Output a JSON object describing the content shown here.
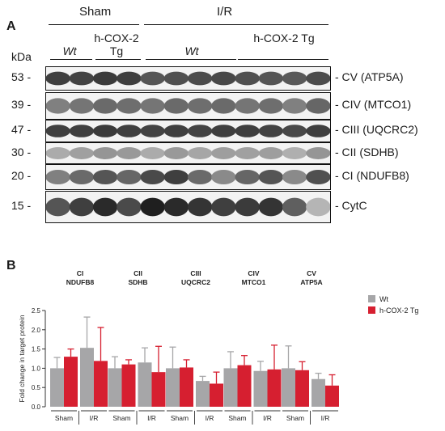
{
  "panel_a": {
    "letter": "A",
    "groups": {
      "sham": "Sham",
      "ir": "I/R"
    },
    "genotypes": {
      "wt1": "Wt",
      "tg1": "h-COX-2 Tg",
      "wt2": "Wt",
      "tg2": "h-COX-2 Tg"
    },
    "kda_label": "kDa",
    "bands": [
      {
        "mw": "53 -",
        "protein": "- CV (ATP5A)",
        "intensity": [
          0.8,
          0.78,
          0.82,
          0.8,
          0.7,
          0.72,
          0.74,
          0.76,
          0.72,
          0.7,
          0.68,
          0.74
        ]
      },
      {
        "mw": "39 -",
        "protein": "- CIV (MTCO1)",
        "intensity": [
          0.5,
          0.55,
          0.6,
          0.58,
          0.55,
          0.6,
          0.58,
          0.6,
          0.55,
          0.58,
          0.5,
          0.62
        ]
      },
      {
        "mw": "47 -",
        "protein": "- CIII (UQCRC2)",
        "intensity": [
          0.8,
          0.8,
          0.82,
          0.8,
          0.78,
          0.8,
          0.78,
          0.8,
          0.8,
          0.78,
          0.76,
          0.8
        ]
      },
      {
        "mw": "30 -",
        "protein": "- CII (SDHB)",
        "intensity": [
          0.3,
          0.35,
          0.4,
          0.38,
          0.3,
          0.38,
          0.32,
          0.36,
          0.35,
          0.36,
          0.28,
          0.4
        ]
      },
      {
        "mw": "20 -",
        "protein": "- CI (NDUFB8)",
        "intensity": [
          0.5,
          0.6,
          0.7,
          0.62,
          0.75,
          0.8,
          0.6,
          0.45,
          0.62,
          0.7,
          0.45,
          0.72
        ]
      },
      {
        "mw": "15 -",
        "protein": "- CytC",
        "intensity": [
          0.7,
          0.8,
          0.9,
          0.75,
          0.95,
          0.9,
          0.85,
          0.8,
          0.82,
          0.85,
          0.65,
          0.25
        ]
      }
    ]
  },
  "chart_data": {
    "panel_letter": "B",
    "type": "bar",
    "ylabel": "Fold change in target protein",
    "ylim": [
      0,
      2.5
    ],
    "yticks": [
      "0.0",
      "0.5",
      "1.0",
      "1.5",
      "2.0",
      "2.5"
    ],
    "ytick_values": [
      0,
      0.5,
      1.0,
      1.5,
      2.0,
      2.5
    ],
    "legend": [
      {
        "name": "Wt",
        "color": "#a6a6a8"
      },
      {
        "name": "h-COX-2 Tg",
        "color": "#d61f30"
      }
    ],
    "legend_position": "right",
    "groups": [
      {
        "title1": "CI",
        "title2": "NDUFB8",
        "conditions": [
          {
            "label": "Sham",
            "wt": [
              1.0,
              0.28
            ],
            "tg": [
              1.3,
              0.2
            ]
          },
          {
            "label": "I/R",
            "wt": [
              1.53,
              0.8
            ],
            "tg": [
              1.19,
              0.87
            ]
          }
        ]
      },
      {
        "title1": "CII",
        "title2": "SDHB",
        "conditions": [
          {
            "label": "Sham",
            "wt": [
              1.0,
              0.3
            ],
            "tg": [
              1.1,
              0.12
            ]
          },
          {
            "label": "I/R",
            "wt": [
              1.15,
              0.38
            ],
            "tg": [
              0.9,
              0.67
            ]
          }
        ]
      },
      {
        "title1": "CIII",
        "title2": "UQCRC2",
        "conditions": [
          {
            "label": "Sham",
            "wt": [
              1.0,
              0.55
            ],
            "tg": [
              1.02,
              0.2
            ]
          },
          {
            "label": "I/R",
            "wt": [
              0.67,
              0.12
            ],
            "tg": [
              0.6,
              0.3
            ]
          }
        ]
      },
      {
        "title1": "CIV",
        "title2": "MTCO1",
        "conditions": [
          {
            "label": "Sham",
            "wt": [
              1.0,
              0.43
            ],
            "tg": [
              1.08,
              0.25
            ]
          },
          {
            "label": "I/R",
            "wt": [
              0.93,
              0.25
            ],
            "tg": [
              0.97,
              0.63
            ]
          }
        ]
      },
      {
        "title1": "CV",
        "title2": "ATP5A",
        "conditions": [
          {
            "label": "Sham",
            "wt": [
              1.0,
              0.58
            ],
            "tg": [
              0.95,
              0.22
            ]
          },
          {
            "label": "I/R",
            "wt": [
              0.72,
              0.15
            ],
            "tg": [
              0.55,
              0.28
            ]
          }
        ]
      }
    ]
  }
}
